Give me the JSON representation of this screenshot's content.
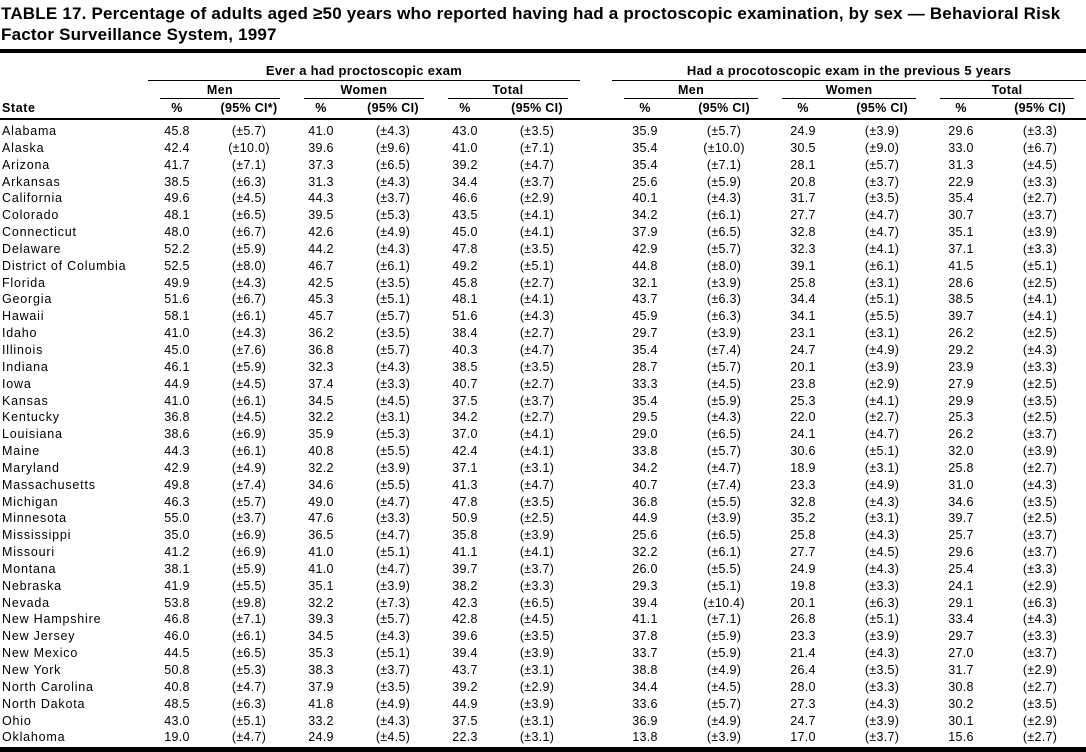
{
  "title": "TABLE 17. Percentage of adults aged ≥50 years who reported having had a proctoscopic examination, by sex — Behavioral Risk Factor Surveillance System, 1997",
  "table": {
    "state_header": "State",
    "groups": [
      {
        "label": "Ever a had proctoscopic exam",
        "subgroups": [
          "Men",
          "Women",
          "Total"
        ]
      },
      {
        "label": "Had a procotoscopic exam in the previous 5 years",
        "subgroups": [
          "Men",
          "Women",
          "Total"
        ]
      }
    ],
    "col_headers": [
      "%",
      "(95% CI*)",
      "%",
      "(95% CI)",
      "%",
      "(95% CI)",
      "%",
      "(95% CI)",
      "%",
      "(95% CI)",
      "%",
      "(95% CI)"
    ],
    "rows": [
      [
        "Alabama",
        "45.8",
        "(±5.7)",
        "41.0",
        "(±4.3)",
        "43.0",
        "(±3.5)",
        "35.9",
        "(±5.7)",
        "24.9",
        "(±3.9)",
        "29.6",
        "(±3.3)"
      ],
      [
        "Alaska",
        "42.4",
        "(±10.0)",
        "39.6",
        "(±9.6)",
        "41.0",
        "(±7.1)",
        "35.4",
        "(±10.0)",
        "30.5",
        "(±9.0)",
        "33.0",
        "(±6.7)"
      ],
      [
        "Arizona",
        "41.7",
        "(±7.1)",
        "37.3",
        "(±6.5)",
        "39.2",
        "(±4.7)",
        "35.4",
        "(±7.1)",
        "28.1",
        "(±5.7)",
        "31.3",
        "(±4.5)"
      ],
      [
        "Arkansas",
        "38.5",
        "(±6.3)",
        "31.3",
        "(±4.3)",
        "34.4",
        "(±3.7)",
        "25.6",
        "(±5.9)",
        "20.8",
        "(±3.7)",
        "22.9",
        "(±3.3)"
      ],
      [
        "California",
        "49.6",
        "(±4.5)",
        "44.3",
        "(±3.7)",
        "46.6",
        "(±2.9)",
        "40.1",
        "(±4.3)",
        "31.7",
        "(±3.5)",
        "35.4",
        "(±2.7)"
      ],
      [
        "Colorado",
        "48.1",
        "(±6.5)",
        "39.5",
        "(±5.3)",
        "43.5",
        "(±4.1)",
        "34.2",
        "(±6.1)",
        "27.7",
        "(±4.7)",
        "30.7",
        "(±3.7)"
      ],
      [
        "Connecticut",
        "48.0",
        "(±6.7)",
        "42.6",
        "(±4.9)",
        "45.0",
        "(±4.1)",
        "37.9",
        "(±6.5)",
        "32.8",
        "(±4.7)",
        "35.1",
        "(±3.9)"
      ],
      [
        "Delaware",
        "52.2",
        "(±5.9)",
        "44.2",
        "(±4.3)",
        "47.8",
        "(±3.5)",
        "42.9",
        "(±5.7)",
        "32.3",
        "(±4.1)",
        "37.1",
        "(±3.3)"
      ],
      [
        "District of Columbia",
        "52.5",
        "(±8.0)",
        "46.7",
        "(±6.1)",
        "49.2",
        "(±5.1)",
        "44.8",
        "(±8.0)",
        "39.1",
        "(±6.1)",
        "41.5",
        "(±5.1)"
      ],
      [
        "Florida",
        "49.9",
        "(±4.3)",
        "42.5",
        "(±3.5)",
        "45.8",
        "(±2.7)",
        "32.1",
        "(±3.9)",
        "25.8",
        "(±3.1)",
        "28.6",
        "(±2.5)"
      ],
      [
        "Georgia",
        "51.6",
        "(±6.7)",
        "45.3",
        "(±5.1)",
        "48.1",
        "(±4.1)",
        "43.7",
        "(±6.3)",
        "34.4",
        "(±5.1)",
        "38.5",
        "(±4.1)"
      ],
      [
        "Hawaii",
        "58.1",
        "(±6.1)",
        "45.7",
        "(±5.7)",
        "51.6",
        "(±4.3)",
        "45.9",
        "(±6.3)",
        "34.1",
        "(±5.5)",
        "39.7",
        "(±4.1)"
      ],
      [
        "Idaho",
        "41.0",
        "(±4.3)",
        "36.2",
        "(±3.5)",
        "38.4",
        "(±2.7)",
        "29.7",
        "(±3.9)",
        "23.1",
        "(±3.1)",
        "26.2",
        "(±2.5)"
      ],
      [
        "Illinois",
        "45.0",
        "(±7.6)",
        "36.8",
        "(±5.7)",
        "40.3",
        "(±4.7)",
        "35.4",
        "(±7.4)",
        "24.7",
        "(±4.9)",
        "29.2",
        "(±4.3)"
      ],
      [
        "Indiana",
        "46.1",
        "(±5.9)",
        "32.3",
        "(±4.3)",
        "38.5",
        "(±3.5)",
        "28.7",
        "(±5.7)",
        "20.1",
        "(±3.9)",
        "23.9",
        "(±3.3)"
      ],
      [
        "Iowa",
        "44.9",
        "(±4.5)",
        "37.4",
        "(±3.3)",
        "40.7",
        "(±2.7)",
        "33.3",
        "(±4.5)",
        "23.8",
        "(±2.9)",
        "27.9",
        "(±2.5)"
      ],
      [
        "Kansas",
        "41.0",
        "(±6.1)",
        "34.5",
        "(±4.5)",
        "37.5",
        "(±3.7)",
        "35.4",
        "(±5.9)",
        "25.3",
        "(±4.1)",
        "29.9",
        "(±3.5)"
      ],
      [
        "Kentucky",
        "36.8",
        "(±4.5)",
        "32.2",
        "(±3.1)",
        "34.2",
        "(±2.7)",
        "29.5",
        "(±4.3)",
        "22.0",
        "(±2.7)",
        "25.3",
        "(±2.5)"
      ],
      [
        "Louisiana",
        "38.6",
        "(±6.9)",
        "35.9",
        "(±5.3)",
        "37.0",
        "(±4.1)",
        "29.0",
        "(±6.5)",
        "24.1",
        "(±4.7)",
        "26.2",
        "(±3.7)"
      ],
      [
        "Maine",
        "44.3",
        "(±6.1)",
        "40.8",
        "(±5.5)",
        "42.4",
        "(±4.1)",
        "33.8",
        "(±5.7)",
        "30.6",
        "(±5.1)",
        "32.0",
        "(±3.9)"
      ],
      [
        "Maryland",
        "42.9",
        "(±4.9)",
        "32.2",
        "(±3.9)",
        "37.1",
        "(±3.1)",
        "34.2",
        "(±4.7)",
        "18.9",
        "(±3.1)",
        "25.8",
        "(±2.7)"
      ],
      [
        "Massachusetts",
        "49.8",
        "(±7.4)",
        "34.6",
        "(±5.5)",
        "41.3",
        "(±4.7)",
        "40.7",
        "(±7.4)",
        "23.3",
        "(±4.9)",
        "31.0",
        "(±4.3)"
      ],
      [
        "Michigan",
        "46.3",
        "(±5.7)",
        "49.0",
        "(±4.7)",
        "47.8",
        "(±3.5)",
        "36.8",
        "(±5.5)",
        "32.8",
        "(±4.3)",
        "34.6",
        "(±3.5)"
      ],
      [
        "Minnesota",
        "55.0",
        "(±3.7)",
        "47.6",
        "(±3.3)",
        "50.9",
        "(±2.5)",
        "44.9",
        "(±3.9)",
        "35.2",
        "(±3.1)",
        "39.7",
        "(±2.5)"
      ],
      [
        "Mississippi",
        "35.0",
        "(±6.9)",
        "36.5",
        "(±4.7)",
        "35.8",
        "(±3.9)",
        "25.6",
        "(±6.5)",
        "25.8",
        "(±4.3)",
        "25.7",
        "(±3.7)"
      ],
      [
        "Missouri",
        "41.2",
        "(±6.9)",
        "41.0",
        "(±5.1)",
        "41.1",
        "(±4.1)",
        "32.2",
        "(±6.1)",
        "27.7",
        "(±4.5)",
        "29.6",
        "(±3.7)"
      ],
      [
        "Montana",
        "38.1",
        "(±5.9)",
        "41.0",
        "(±4.7)",
        "39.7",
        "(±3.7)",
        "26.0",
        "(±5.5)",
        "24.9",
        "(±4.3)",
        "25.4",
        "(±3.3)"
      ],
      [
        "Nebraska",
        "41.9",
        "(±5.5)",
        "35.1",
        "(±3.9)",
        "38.2",
        "(±3.3)",
        "29.3",
        "(±5.1)",
        "19.8",
        "(±3.3)",
        "24.1",
        "(±2.9)"
      ],
      [
        "Nevada",
        "53.8",
        "(±9.8)",
        "32.2",
        "(±7.3)",
        "42.3",
        "(±6.5)",
        "39.4",
        "(±10.4)",
        "20.1",
        "(±6.3)",
        "29.1",
        "(±6.3)"
      ],
      [
        "New Hampshire",
        "46.8",
        "(±7.1)",
        "39.3",
        "(±5.7)",
        "42.8",
        "(±4.5)",
        "41.1",
        "(±7.1)",
        "26.8",
        "(±5.1)",
        "33.4",
        "(±4.3)"
      ],
      [
        "New Jersey",
        "46.0",
        "(±6.1)",
        "34.5",
        "(±4.3)",
        "39.6",
        "(±3.5)",
        "37.8",
        "(±5.9)",
        "23.3",
        "(±3.9)",
        "29.7",
        "(±3.3)"
      ],
      [
        "New Mexico",
        "44.5",
        "(±6.5)",
        "35.3",
        "(±5.1)",
        "39.4",
        "(±3.9)",
        "33.7",
        "(±5.9)",
        "21.4",
        "(±4.3)",
        "27.0",
        "(±3.7)"
      ],
      [
        "New York",
        "50.8",
        "(±5.3)",
        "38.3",
        "(±3.7)",
        "43.7",
        "(±3.1)",
        "38.8",
        "(±4.9)",
        "26.4",
        "(±3.5)",
        "31.7",
        "(±2.9)"
      ],
      [
        "North Carolina",
        "40.8",
        "(±4.7)",
        "37.9",
        "(±3.5)",
        "39.2",
        "(±2.9)",
        "34.4",
        "(±4.5)",
        "28.0",
        "(±3.3)",
        "30.8",
        "(±2.7)"
      ],
      [
        "North Dakota",
        "48.5",
        "(±6.3)",
        "41.8",
        "(±4.9)",
        "44.9",
        "(±3.9)",
        "33.6",
        "(±5.7)",
        "27.3",
        "(±4.3)",
        "30.2",
        "(±3.5)"
      ],
      [
        "Ohio",
        "43.0",
        "(±5.1)",
        "33.2",
        "(±4.3)",
        "37.5",
        "(±3.1)",
        "36.9",
        "(±4.9)",
        "24.7",
        "(±3.9)",
        "30.1",
        "(±2.9)"
      ],
      [
        "Oklahoma",
        "19.0",
        "(±4.7)",
        "24.9",
        "(±4.5)",
        "22.3",
        "(±3.1)",
        "13.8",
        "(±3.9)",
        "17.0",
        "(±3.7)",
        "15.6",
        "(±2.7)"
      ]
    ]
  }
}
